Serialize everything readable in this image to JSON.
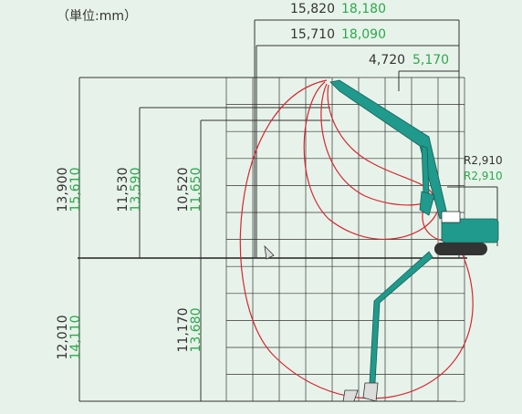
{
  "unit": "（単位:mm）",
  "dimensions": [
    {
      "standard": "15,820",
      "long": "18,180"
    },
    {
      "standard": "15,710",
      "long": "18,090"
    },
    {
      "standard": "4,720",
      "long": "5,170"
    },
    {
      "standard": "R2,910",
      "long": "R2,910"
    },
    {
      "standard": "13,900",
      "long": "15,610"
    },
    {
      "standard": "11,530",
      "long": "13,590"
    },
    {
      "standard": "10,520",
      "long": "11,650"
    },
    {
      "standard": "12,010",
      "long": "14,110"
    },
    {
      "standard": "11,170",
      "long": "13,680"
    }
  ]
}
